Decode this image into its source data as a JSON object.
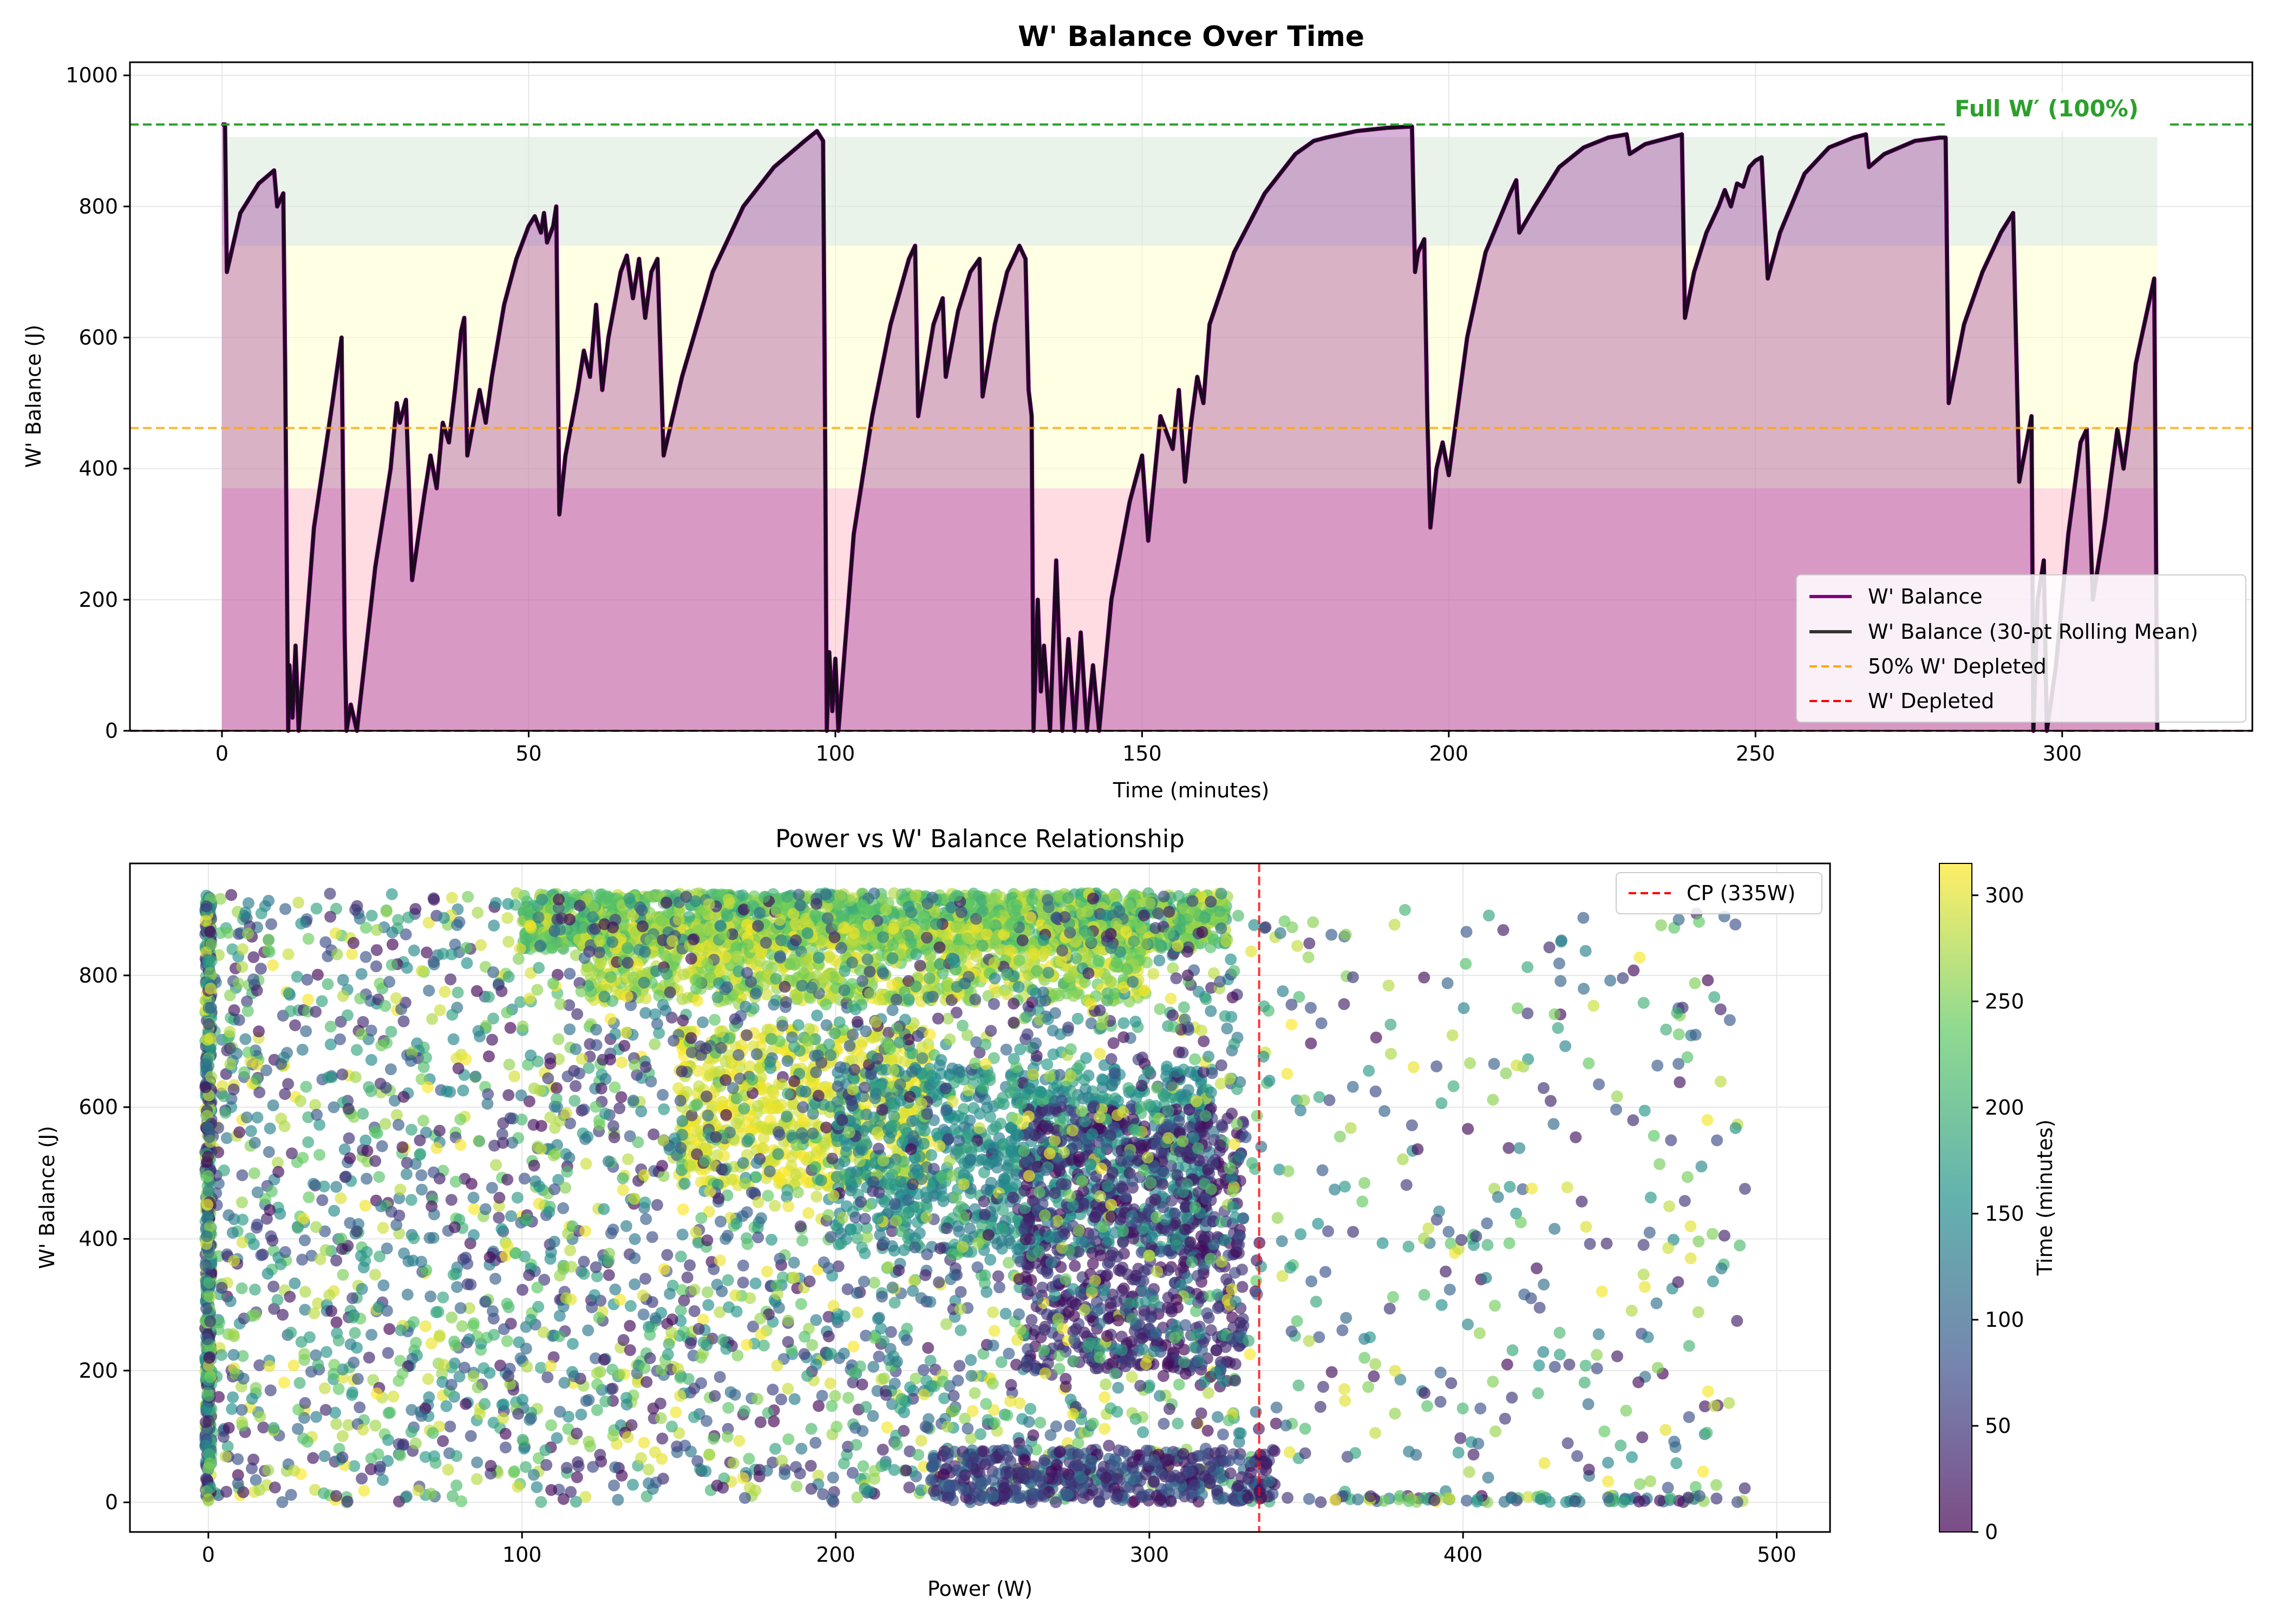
{
  "colors": {
    "wbal": "#800080",
    "rolling": "#1a0a1e",
    "half_line": "#ffa500",
    "depleted_line": "#ff0000",
    "full_line": "#2ca02c",
    "zone_red": "#ffc0cb",
    "zone_yellow": "#ffffcc",
    "zone_green": "#d9ead9",
    "cp_line": "#ff0000",
    "colormap": [
      "#440154",
      "#3b528b",
      "#21918c",
      "#5ec962",
      "#fde725"
    ]
  },
  "chart_data": [
    {
      "type": "line",
      "title": "W' Balance Over Time",
      "xlabel": "Time (minutes)",
      "ylabel": "W' Balance (J)",
      "xlim": [
        -15,
        331
      ],
      "ylim": [
        0,
        1020
      ],
      "xticks": [
        "0",
        "50",
        "100",
        "150",
        "200",
        "250",
        "300"
      ],
      "yticks": [
        "0",
        "200",
        "400",
        "600",
        "800",
        "1000"
      ],
      "grid": true,
      "legend_position": "lower right",
      "full_w_prime": 925,
      "half_level": 462,
      "annotation": "Full W′ (100%)",
      "zones": [
        {
          "from": 0,
          "to": 370,
          "color": "pink"
        },
        {
          "from": 370,
          "to": 740,
          "color": "lightyellow"
        },
        {
          "from": 740,
          "to": 906,
          "color": "lightgreen"
        }
      ],
      "legend": [
        "W' Balance",
        "W' Balance (30-pt Rolling Mean)",
        "50% W' Depleted",
        "W' Depleted"
      ],
      "series": [
        {
          "name": "W' Balance",
          "points": [
            [
              0,
              925
            ],
            [
              0.5,
              925
            ],
            [
              0.8,
              700
            ],
            [
              3,
              790
            ],
            [
              6,
              835
            ],
            [
              8.5,
              855
            ],
            [
              9,
              800
            ],
            [
              10,
              820
            ],
            [
              10.3,
              560
            ],
            [
              10.8,
              0
            ],
            [
              11,
              100
            ],
            [
              11.5,
              20
            ],
            [
              12,
              130
            ],
            [
              12.5,
              0
            ],
            [
              15,
              310
            ],
            [
              18,
              500
            ],
            [
              19.5,
              600
            ],
            [
              20,
              150
            ],
            [
              20.3,
              0
            ],
            [
              21,
              40
            ],
            [
              22,
              0
            ],
            [
              25,
              250
            ],
            [
              27.5,
              400
            ],
            [
              28.5,
              500
            ],
            [
              29,
              470
            ],
            [
              30,
              505
            ],
            [
              31,
              230
            ],
            [
              33,
              360
            ],
            [
              34,
              420
            ],
            [
              35,
              370
            ],
            [
              36,
              470
            ],
            [
              37,
              440
            ],
            [
              38,
              520
            ],
            [
              39,
              610
            ],
            [
              39.5,
              630
            ],
            [
              40,
              420
            ],
            [
              41,
              470
            ],
            [
              42,
              520
            ],
            [
              43,
              470
            ],
            [
              44,
              540
            ],
            [
              46,
              650
            ],
            [
              48,
              720
            ],
            [
              50,
              770
            ],
            [
              51,
              785
            ],
            [
              52,
              760
            ],
            [
              52.5,
              790
            ],
            [
              53,
              745
            ],
            [
              54,
              770
            ],
            [
              54.5,
              800
            ],
            [
              55,
              330
            ],
            [
              56,
              420
            ],
            [
              58,
              520
            ],
            [
              59,
              580
            ],
            [
              60,
              540
            ],
            [
              61,
              650
            ],
            [
              62,
              520
            ],
            [
              63,
              600
            ],
            [
              64,
              650
            ],
            [
              65,
              700
            ],
            [
              66,
              725
            ],
            [
              67,
              660
            ],
            [
              68,
              720
            ],
            [
              69,
              630
            ],
            [
              70,
              700
            ],
            [
              71,
              720
            ],
            [
              72,
              420
            ],
            [
              75,
              540
            ],
            [
              80,
              700
            ],
            [
              85,
              800
            ],
            [
              90,
              860
            ],
            [
              95,
              900
            ],
            [
              97,
              915
            ],
            [
              98,
              900
            ],
            [
              98.3,
              500
            ],
            [
              98.6,
              0
            ],
            [
              99,
              120
            ],
            [
              99.5,
              30
            ],
            [
              100,
              110
            ],
            [
              100.5,
              0
            ],
            [
              103,
              300
            ],
            [
              106,
              480
            ],
            [
              109,
              620
            ],
            [
              112,
              720
            ],
            [
              113,
              740
            ],
            [
              113.5,
              480
            ],
            [
              116,
              620
            ],
            [
              117.5,
              660
            ],
            [
              118,
              540
            ],
            [
              120,
              640
            ],
            [
              122,
              700
            ],
            [
              123.5,
              720
            ],
            [
              124,
              510
            ],
            [
              126,
              620
            ],
            [
              128,
              700
            ],
            [
              130,
              740
            ],
            [
              131,
              720
            ],
            [
              131.5,
              520
            ],
            [
              132,
              480
            ],
            [
              132.3,
              0
            ],
            [
              133,
              200
            ],
            [
              133.5,
              60
            ],
            [
              134,
              130
            ],
            [
              135,
              0
            ],
            [
              136,
              260
            ],
            [
              137,
              0
            ],
            [
              138,
              140
            ],
            [
              139,
              0
            ],
            [
              140,
              150
            ],
            [
              141,
              0
            ],
            [
              142,
              100
            ],
            [
              143,
              0
            ],
            [
              145,
              200
            ],
            [
              148,
              350
            ],
            [
              150,
              420
            ],
            [
              151,
              290
            ],
            [
              153,
              480
            ],
            [
              155,
              430
            ],
            [
              156,
              520
            ],
            [
              157,
              380
            ],
            [
              158,
              470
            ],
            [
              159,
              540
            ],
            [
              160,
              500
            ],
            [
              161,
              620
            ],
            [
              165,
              730
            ],
            [
              170,
              820
            ],
            [
              175,
              880
            ],
            [
              178,
              900
            ],
            [
              180,
              905
            ],
            [
              185,
              915
            ],
            [
              190,
              920
            ],
            [
              194,
              922
            ],
            [
              194.5,
              700
            ],
            [
              195,
              730
            ],
            [
              196,
              750
            ],
            [
              196.5,
              480
            ],
            [
              197,
              310
            ],
            [
              198,
              400
            ],
            [
              199,
              440
            ],
            [
              200,
              390
            ],
            [
              203,
              600
            ],
            [
              206,
              730
            ],
            [
              210,
              820
            ],
            [
              211,
              840
            ],
            [
              211.5,
              760
            ],
            [
              214,
              800
            ],
            [
              218,
              860
            ],
            [
              222,
              890
            ],
            [
              226,
              905
            ],
            [
              229,
              910
            ],
            [
              229.5,
              880
            ],
            [
              232,
              895
            ],
            [
              236,
              905
            ],
            [
              238,
              910
            ],
            [
              238.5,
              630
            ],
            [
              240,
              700
            ],
            [
              242,
              760
            ],
            [
              244,
              800
            ],
            [
              245,
              825
            ],
            [
              246,
              800
            ],
            [
              247,
              835
            ],
            [
              248,
              830
            ],
            [
              249,
              860
            ],
            [
              250,
              870
            ],
            [
              251,
              875
            ],
            [
              252,
              690
            ],
            [
              254,
              760
            ],
            [
              258,
              850
            ],
            [
              262,
              890
            ],
            [
              266,
              905
            ],
            [
              268,
              910
            ],
            [
              268.5,
              860
            ],
            [
              271,
              880
            ],
            [
              276,
              900
            ],
            [
              280,
              905
            ],
            [
              281,
              905
            ],
            [
              281.5,
              500
            ],
            [
              284,
              620
            ],
            [
              287,
              700
            ],
            [
              290,
              760
            ],
            [
              292,
              790
            ],
            [
              293,
              380
            ],
            [
              295,
              480
            ],
            [
              295.3,
              0
            ],
            [
              296,
              200
            ],
            [
              297,
              260
            ],
            [
              297.5,
              0
            ],
            [
              299,
              100
            ],
            [
              301,
              300
            ],
            [
              303,
              440
            ],
            [
              304,
              460
            ],
            [
              305,
              200
            ],
            [
              307,
              320
            ],
            [
              309,
              460
            ],
            [
              310,
              400
            ],
            [
              311,
              470
            ],
            [
              312,
              560
            ],
            [
              315,
              690
            ],
            [
              315.5,
              0
            ]
          ]
        }
      ]
    },
    {
      "type": "scatter",
      "title": "Power vs W' Balance Relationship",
      "xlabel": "Power (W)",
      "ylabel": "W' Balance (J)",
      "xlim": [
        -25,
        517
      ],
      "ylim": [
        -45,
        970
      ],
      "xticks": [
        "0",
        "100",
        "200",
        "300",
        "400",
        "500"
      ],
      "yticks": [
        "0",
        "200",
        "400",
        "600",
        "800"
      ],
      "grid": true,
      "legend_position": "upper right",
      "legend": [
        "CP (335W)"
      ],
      "cp_value": 335,
      "colorbar_label": "Time (minutes)",
      "colorbar_range": [
        0,
        315
      ],
      "colorbar_ticks": [
        "0",
        "50",
        "100",
        "150",
        "200",
        "250",
        "300"
      ],
      "point_sampling": "estimated density, seeded approximation",
      "clusters": [
        {
          "x_range": [
            100,
            325
          ],
          "y_range": [
            840,
            925
          ],
          "t_range": [
            180,
            290
          ],
          "count": 1700
        },
        {
          "x_range": [
            120,
            300
          ],
          "y_range": [
            760,
            880
          ],
          "t_range": [
            230,
            315
          ],
          "count": 900
        },
        {
          "x_range": [
            150,
            230
          ],
          "y_range": [
            480,
            720
          ],
          "t_range": [
            280,
            315
          ],
          "count": 600
        },
        {
          "x_range": [
            200,
            320
          ],
          "y_range": [
            380,
            660
          ],
          "t_range": [
            120,
            190
          ],
          "count": 900
        },
        {
          "x_range": [
            260,
            330
          ],
          "y_range": [
            200,
            600
          ],
          "t_range": [
            0,
            70
          ],
          "count": 700
        },
        {
          "x_range": [
            0,
            330
          ],
          "y_range": [
            0,
            925
          ],
          "t_range": [
            0,
            315
          ],
          "count": 3200
        },
        {
          "x_range": [
            330,
            490
          ],
          "y_range": [
            0,
            900
          ],
          "t_range": [
            0,
            315
          ],
          "count": 360
        },
        {
          "x_range": [
            330,
            490
          ],
          "y_range": [
            0,
            10
          ],
          "t_range": [
            0,
            315
          ],
          "count": 90
        },
        {
          "x_range": [
            230,
            340
          ],
          "y_range": [
            0,
            80
          ],
          "t_range": [
            0,
            120
          ],
          "count": 450
        },
        {
          "x_range": [
            -1,
            1
          ],
          "y_range": [
            0,
            925
          ],
          "t_range": [
            0,
            315
          ],
          "count": 500
        }
      ]
    }
  ]
}
